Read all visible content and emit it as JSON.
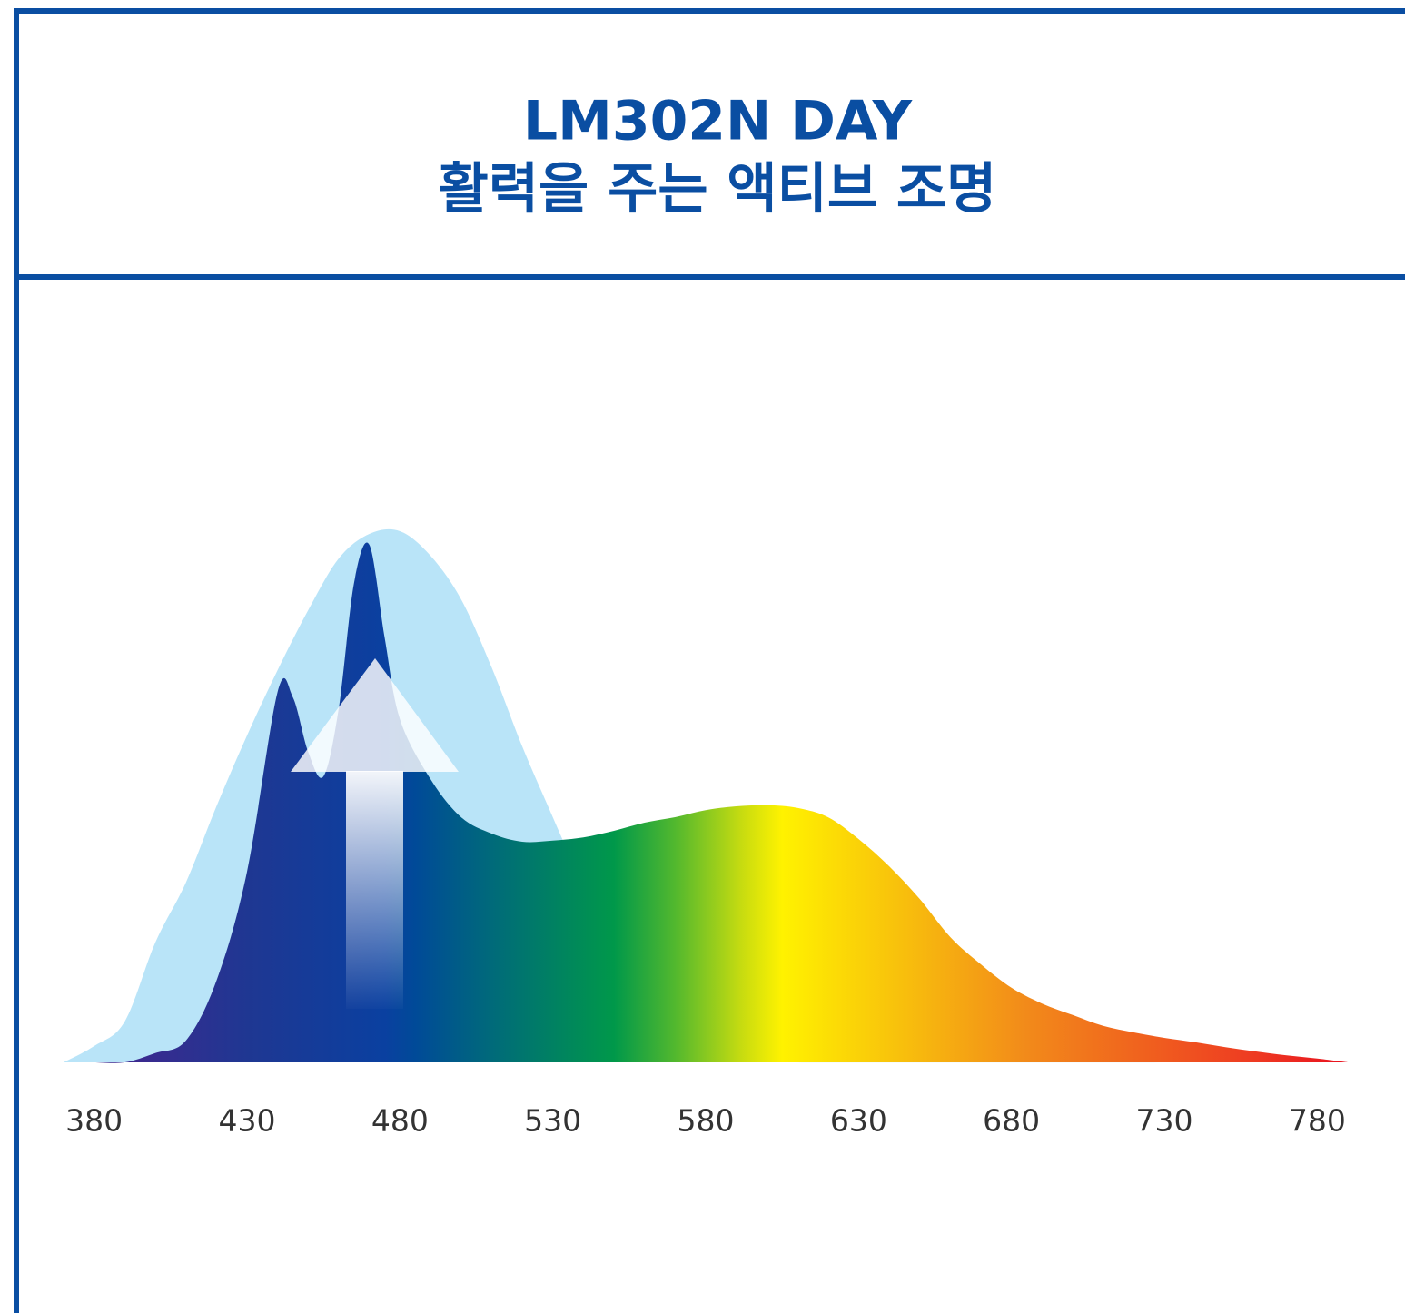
{
  "chart_data": {
    "type": "area",
    "title": "LM302N DAY",
    "subtitle": "활력을 주는 액티브 조명",
    "xlim": [
      370,
      790
    ],
    "ylim": [
      0,
      100
    ],
    "xticks": [
      380,
      430,
      480,
      530,
      580,
      630,
      680,
      730,
      780
    ],
    "series": [
      {
        "color": "#b9e4f8",
        "x": [
          370,
          380,
          390,
          400,
          410,
          420,
          430,
          440,
          450,
          460,
          470,
          480,
          490,
          500,
          510,
          520,
          530,
          540,
          550,
          560,
          570,
          580,
          590,
          600,
          790
        ],
        "values": [
          0,
          3,
          7.5,
          22,
          33,
          47,
          60,
          72,
          83,
          92.5,
          97,
          97.5,
          93,
          85,
          72.5,
          58,
          45,
          32,
          18,
          11,
          5,
          1.7,
          0.3,
          0,
          0
        ]
      },
      {
        "colors": [
          {
            "at": 395,
            "color": "#3a2a8f"
          },
          {
            "at": 430,
            "color": "#1f3792"
          },
          {
            "at": 475,
            "color": "#0a40a0"
          },
          {
            "at": 485,
            "color": "#004a98"
          },
          {
            "at": 510,
            "color": "#006a7a"
          },
          {
            "at": 550,
            "color": "#00984a"
          },
          {
            "at": 570,
            "color": "#52b82e"
          },
          {
            "at": 592,
            "color": "#c8dc10"
          },
          {
            "at": 605,
            "color": "#fff200"
          },
          {
            "at": 650,
            "color": "#f7b80e"
          },
          {
            "at": 685,
            "color": "#f28a1a"
          },
          {
            "at": 760,
            "color": "#ee3a22"
          },
          {
            "at": 790,
            "color": "#e8101e"
          }
        ],
        "x": [
          380,
          390,
          400,
          410,
          420,
          430,
          440,
          445,
          450,
          455,
          460,
          465,
          470,
          475,
          480,
          490,
          500,
          510,
          520,
          530,
          540,
          550,
          560,
          570,
          580,
          590,
          600,
          610,
          620,
          630,
          640,
          650,
          660,
          670,
          680,
          690,
          700,
          710,
          720,
          730,
          740,
          750,
          760,
          770,
          780,
          790
        ],
        "values": [
          0,
          0,
          1.7,
          4,
          15,
          35,
          68,
          67,
          57,
          52.5,
          65,
          88,
          95,
          78,
          63,
          52,
          45,
          42,
          40.5,
          40.7,
          41.3,
          42.5,
          44,
          45,
          46.3,
          47,
          47.2,
          46.7,
          45,
          41,
          36,
          30,
          23,
          18,
          13.7,
          10.8,
          8.7,
          6.7,
          5.5,
          4.5,
          3.7,
          2.8,
          2,
          1.3,
          0.7,
          0
        ]
      }
    ]
  }
}
